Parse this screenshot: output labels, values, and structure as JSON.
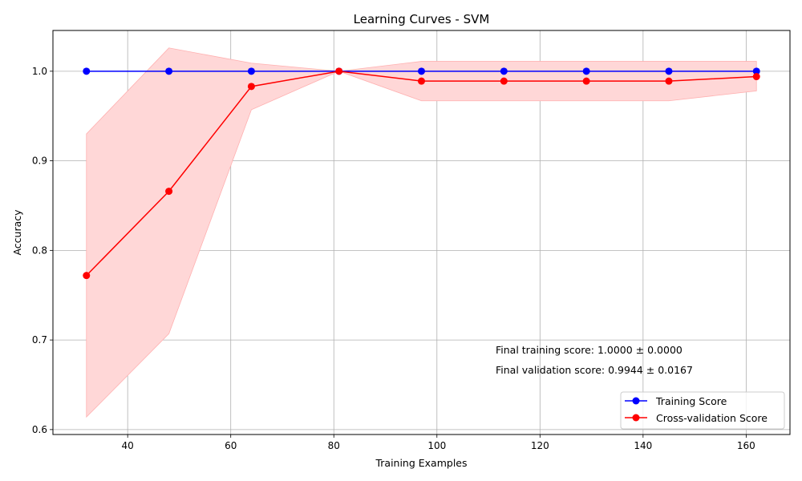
{
  "chart_data": {
    "type": "line",
    "title": "Learning Curves - SVM",
    "xlabel": "Training Examples",
    "ylabel": "Accuracy",
    "xlim": [
      25.5,
      168.5
    ],
    "ylim": [
      0.5945,
      1.0455
    ],
    "xticks": [
      40,
      60,
      80,
      100,
      120,
      140,
      160
    ],
    "yticks": [
      0.6,
      0.7,
      0.8,
      0.9,
      1.0
    ],
    "x": [
      32,
      48,
      64,
      81,
      97,
      113,
      129,
      145,
      162
    ],
    "series": [
      {
        "name": "Training Score",
        "color": "#0000ff",
        "values": [
          1.0,
          1.0,
          1.0,
          1.0,
          1.0,
          1.0,
          1.0,
          1.0,
          1.0
        ],
        "band_lower": [
          1.0,
          1.0,
          1.0,
          1.0,
          1.0,
          1.0,
          1.0,
          1.0,
          1.0
        ],
        "band_upper": [
          1.0,
          1.0,
          1.0,
          1.0,
          1.0,
          1.0,
          1.0,
          1.0,
          1.0
        ]
      },
      {
        "name": "Cross-validation Score",
        "color": "#ff0000",
        "band_color": "#ffd7d7",
        "values": [
          0.772,
          0.866,
          0.983,
          1.0,
          0.989,
          0.989,
          0.989,
          0.989,
          0.994
        ],
        "band_lower": [
          0.614,
          0.707,
          0.957,
          1.0,
          0.967,
          0.967,
          0.967,
          0.967,
          0.978
        ],
        "band_upper": [
          0.93,
          1.026,
          1.009,
          1.0,
          1.011,
          1.011,
          1.011,
          1.011,
          1.011
        ]
      }
    ],
    "grid": true,
    "legend_position": "lower-right",
    "annotations": [
      "Final training score: 1.0000 ± 0.0000",
      "Final validation score: 0.9944 ± 0.0167"
    ]
  }
}
